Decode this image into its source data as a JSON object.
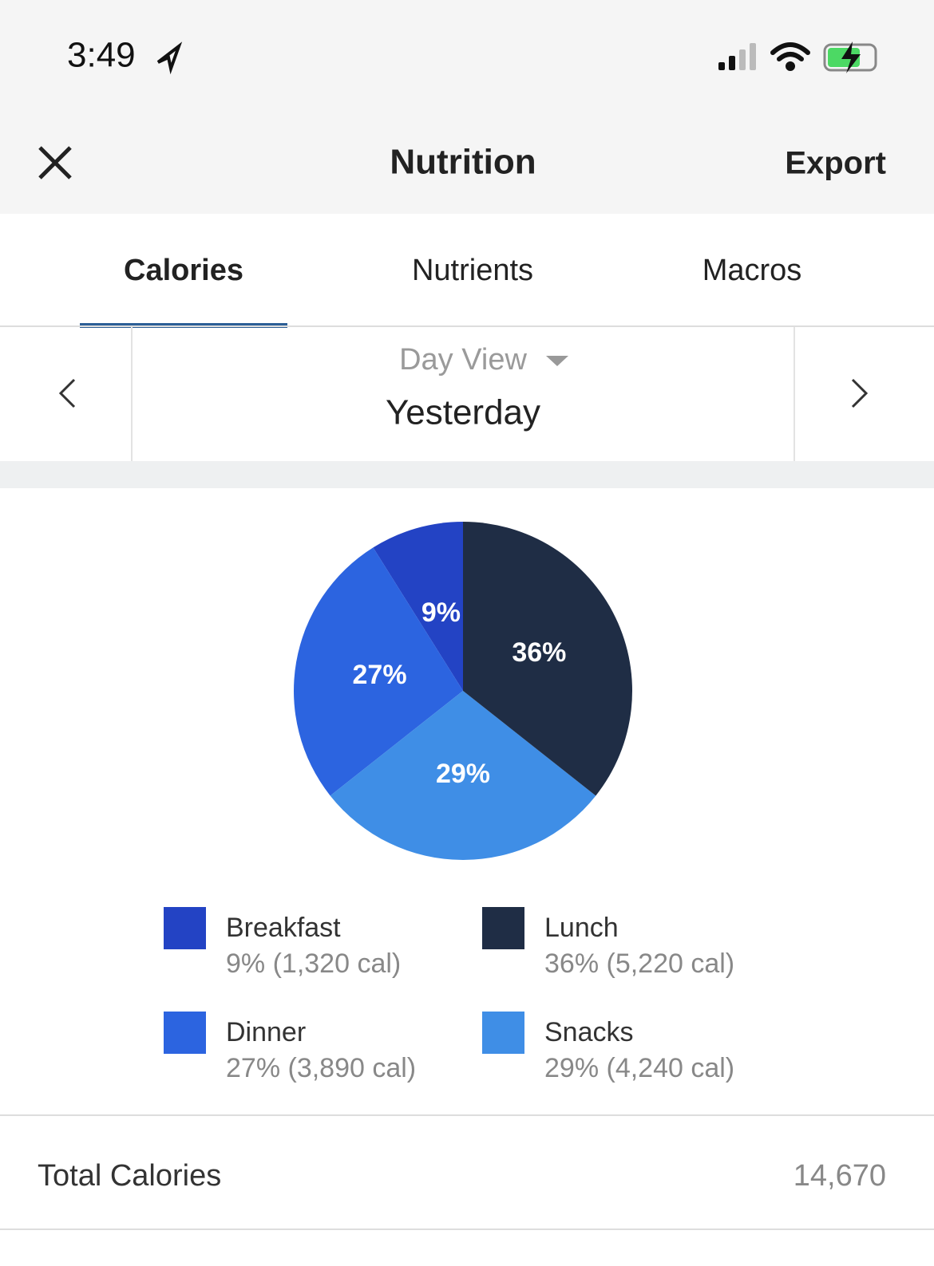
{
  "status_bar": {
    "time": "3:49"
  },
  "header": {
    "title": "Nutrition",
    "action": "Export"
  },
  "tabs": [
    "Calories",
    "Nutrients",
    "Macros"
  ],
  "date_nav": {
    "view": "Day View",
    "date": "Yesterday"
  },
  "chart_data": {
    "type": "pie",
    "categories": [
      "Breakfast",
      "Lunch",
      "Dinner",
      "Snacks"
    ],
    "values": [
      9,
      36,
      27,
      29
    ],
    "value_labels": [
      "9%",
      "36%",
      "27%",
      "29%"
    ],
    "colors": [
      "#2343c4",
      "#1f2d45",
      "#2c64e0",
      "#3f8ee6"
    ],
    "legend_details": [
      "9% (1,320 cal)",
      "36% (5,220 cal)",
      "27% (3,890 cal)",
      "29% (4,240 cal)"
    ]
  },
  "total": {
    "label": "Total Calories",
    "value": "14,670"
  }
}
